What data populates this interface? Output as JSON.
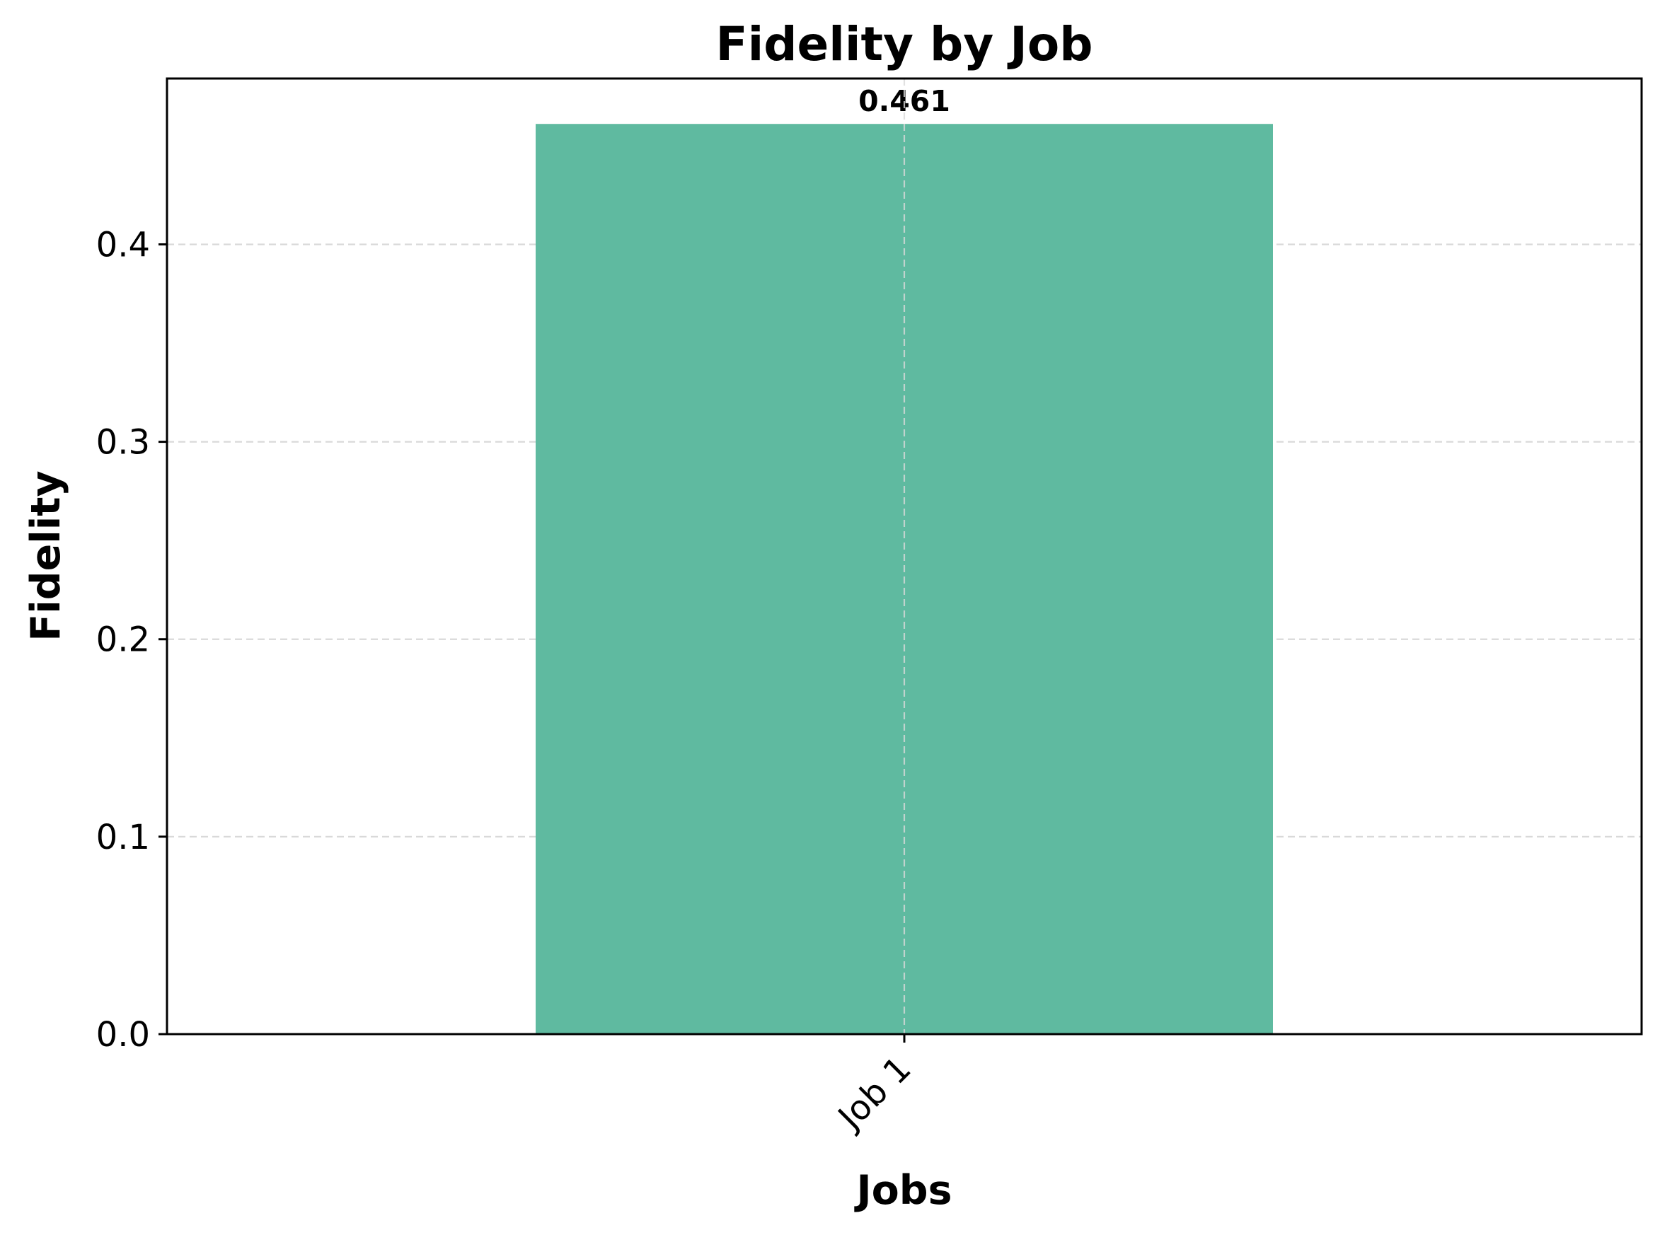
{
  "chart_data": {
    "type": "bar",
    "title": "Fidelity by Job",
    "xlabel": "Jobs",
    "ylabel": "Fidelity",
    "categories": [
      "Job 1"
    ],
    "values": [
      0.461
    ],
    "data_labels": [
      "0.461"
    ],
    "ylim": [
      0,
      0.484
    ],
    "yticks": [
      0.0,
      0.1,
      0.2,
      0.3,
      0.4
    ],
    "ytick_labels": [
      "0.0",
      "0.1",
      "0.2",
      "0.3",
      "0.4"
    ],
    "grid": true,
    "legend": "none",
    "colors": {
      "bar": "#5fbaa0",
      "grid": "#d9d9d9",
      "axes": "#000000"
    }
  }
}
